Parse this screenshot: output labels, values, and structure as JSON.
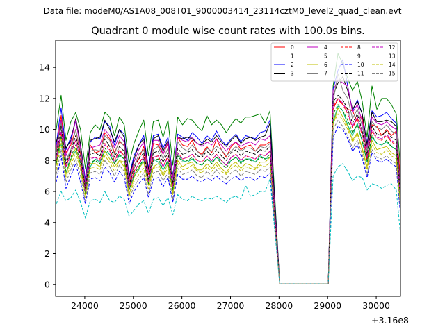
{
  "suptitle": "Data file: modeM0/AS1A08_008T01_9000003414_23114cztM0_level2_quad_clean.evt",
  "chart_data": {
    "type": "line",
    "title": "Quadrant 0 module wise count rates with 100.0s bins.",
    "xlabel": "",
    "ylabel": "",
    "x_offset_label": "+3.16e8",
    "xlim": [
      23400,
      30500
    ],
    "ylim": [
      -0.75,
      15.75
    ],
    "xticks": [
      24000,
      25000,
      26000,
      27000,
      28000,
      29000,
      30000
    ],
    "xtick_labels": [
      "24000",
      "25000",
      "26000",
      "27000",
      "28000",
      "29000",
      "30000"
    ],
    "yticks": [
      0,
      2,
      4,
      6,
      8,
      10,
      12,
      14
    ],
    "ytick_labels": [
      "0",
      "2",
      "4",
      "6",
      "8",
      "10",
      "12",
      "14"
    ],
    "grid": false,
    "legend_position": "top-right",
    "x": [
      23413,
      23513,
      23613,
      23713,
      23813,
      23913,
      24013,
      24113,
      24213,
      24313,
      24413,
      24513,
      24613,
      24713,
      24813,
      24913,
      25013,
      25113,
      25213,
      25313,
      25413,
      25513,
      25613,
      25713,
      25813,
      25913,
      26013,
      26113,
      26213,
      26313,
      26413,
      26513,
      26613,
      26713,
      26813,
      26913,
      27013,
      27113,
      27213,
      27313,
      27413,
      27513,
      27613,
      27713,
      27813,
      28013,
      28213,
      28413,
      28613,
      28813,
      29013,
      29113,
      29213,
      29313,
      29413,
      29513,
      29613,
      29713,
      29813,
      29913,
      30013,
      30113,
      30213,
      30313,
      30413,
      30513
    ],
    "series": [
      {
        "name": "0",
        "color": "#ff0000",
        "dash": "solid",
        "values": [
          8.6,
          10.9,
          8.5,
          9.0,
          10.0,
          8.4,
          6.3,
          9.0,
          8.5,
          8.6,
          9.8,
          9.4,
          8.5,
          9.2,
          9.0,
          6.6,
          7.7,
          8.1,
          8.9,
          7.1,
          9.1,
          9.0,
          8.4,
          9.1,
          6.5,
          9.5,
          9.0,
          8.9,
          9.3,
          8.6,
          8.4,
          8.9,
          8.5,
          9.4,
          8.7,
          8.2,
          8.9,
          9.2,
          8.7,
          8.9,
          9.0,
          8.6,
          9.0,
          9.0,
          9.2,
          0.05,
          0.05,
          0.05,
          0.05,
          0.05,
          0.05,
          11.3,
          12.0,
          11.6,
          11.3,
          11.2,
          10.5,
          10.9,
          8.0,
          10.3,
          10.2,
          9.6,
          10.0,
          9.6,
          9.9,
          6.5
        ]
      },
      {
        "name": "1",
        "color": "#008000",
        "dash": "solid",
        "values": [
          10.0,
          12.2,
          9.3,
          10.5,
          11.1,
          10.0,
          7.5,
          9.8,
          10.3,
          10.0,
          11.1,
          10.8,
          9.6,
          10.8,
          10.3,
          7.8,
          9.1,
          9.9,
          10.6,
          8.3,
          10.5,
          10.6,
          9.5,
          10.6,
          7.7,
          10.8,
          10.3,
          10.7,
          10.6,
          10.2,
          9.9,
          10.9,
          10.3,
          10.6,
          10.3,
          9.8,
          10.3,
          10.7,
          10.4,
          10.8,
          10.8,
          10.9,
          11.0,
          10.4,
          11.2,
          0.05,
          0.05,
          0.05,
          0.05,
          0.05,
          0.05,
          12.8,
          14.9,
          14.2,
          13.3,
          12.5,
          13.1,
          11.8,
          9.5,
          12.8,
          11.3,
          12.0,
          12.0,
          11.6,
          11.0,
          7.0
        ]
      },
      {
        "name": "2",
        "color": "#0000ff",
        "dash": "solid",
        "values": [
          9.0,
          11.4,
          8.7,
          9.5,
          10.5,
          9.0,
          6.8,
          9.2,
          9.5,
          9.4,
          10.5,
          10.2,
          9.0,
          10.0,
          9.7,
          7.0,
          8.3,
          9.0,
          9.6,
          7.5,
          9.6,
          9.7,
          8.8,
          9.5,
          7.0,
          9.7,
          9.5,
          9.3,
          9.8,
          9.5,
          9.1,
          9.6,
          9.3,
          9.9,
          9.3,
          9.0,
          9.4,
          9.7,
          9.2,
          9.6,
          9.5,
          9.4,
          9.8,
          9.9,
          10.6,
          0.05,
          0.05,
          0.05,
          0.05,
          0.05,
          0.05,
          12.6,
          13.8,
          14.5,
          12.8,
          11.2,
          11.9,
          11.0,
          9.1,
          11.2,
          10.8,
          10.9,
          11.1,
          10.7,
          10.4,
          3.6
        ]
      },
      {
        "name": "3",
        "color": "#000000",
        "dash": "solid",
        "values": [
          9.2,
          10.2,
          8.8,
          9.3,
          10.7,
          9.1,
          6.5,
          9.3,
          9.4,
          9.5,
          10.6,
          10.0,
          9.2,
          10.0,
          9.5,
          6.9,
          8.1,
          9.0,
          9.4,
          7.4,
          9.4,
          9.6,
          8.6,
          9.3,
          6.9,
          9.5,
          9.4,
          9.5,
          9.4,
          9.1,
          9.0,
          9.4,
          9.2,
          9.6,
          9.2,
          8.9,
          9.3,
          9.6,
          9.1,
          9.4,
          9.5,
          9.3,
          9.5,
          9.6,
          10.4,
          0.05,
          0.05,
          0.05,
          0.05,
          0.05,
          0.05,
          12.2,
          13.0,
          13.4,
          12.5,
          11.3,
          11.8,
          11.0,
          9.0,
          11.1,
          10.5,
          10.5,
          10.6,
          10.5,
          10.2,
          5.5
        ]
      },
      {
        "name": "4",
        "color": "#bf00bf",
        "dash": "solid",
        "values": [
          8.8,
          10.6,
          8.3,
          9.2,
          10.6,
          8.8,
          6.6,
          8.8,
          8.9,
          9.0,
          10.0,
          9.6,
          8.8,
          9.6,
          9.2,
          6.8,
          7.9,
          8.7,
          9.2,
          7.2,
          9.3,
          9.3,
          8.4,
          9.2,
          6.9,
          9.5,
          9.3,
          9.2,
          9.5,
          9.1,
          8.9,
          9.2,
          9.0,
          9.4,
          9.0,
          8.6,
          9.0,
          9.2,
          8.9,
          9.1,
          9.2,
          9.0,
          9.4,
          9.3,
          9.6,
          0.05,
          0.05,
          0.05,
          0.05,
          0.05,
          0.05,
          12.5,
          13.2,
          13.0,
          12.8,
          11.1,
          11.6,
          10.5,
          8.8,
          10.8,
          10.4,
          10.3,
          10.5,
          10.2,
          10.0,
          5.2
        ]
      },
      {
        "name": "5",
        "color": "#00bf7f",
        "dash": "solid",
        "values": [
          7.9,
          9.1,
          7.2,
          8.1,
          8.6,
          7.9,
          5.8,
          7.6,
          8.1,
          7.9,
          8.6,
          8.4,
          7.8,
          8.3,
          8.1,
          6.1,
          7.0,
          7.4,
          8.1,
          6.5,
          8.1,
          7.9,
          7.4,
          7.9,
          6.2,
          8.4,
          8.0,
          7.9,
          8.1,
          7.8,
          7.7,
          8.1,
          7.9,
          8.2,
          8.0,
          7.7,
          8.0,
          8.2,
          7.9,
          8.1,
          8.1,
          7.9,
          8.3,
          8.1,
          8.2,
          0.05,
          0.05,
          0.05,
          0.05,
          0.05,
          0.05,
          10.5,
          11.5,
          11.2,
          10.3,
          9.6,
          10.4,
          9.2,
          7.9,
          9.5,
          9.1,
          9.0,
          9.2,
          8.9,
          8.7,
          4.6
        ]
      },
      {
        "name": "6",
        "color": "#bfbf00",
        "dash": "solid",
        "values": [
          7.7,
          9.5,
          7.1,
          8.0,
          8.8,
          7.6,
          5.8,
          7.8,
          7.8,
          7.6,
          8.6,
          8.1,
          7.6,
          8.0,
          7.9,
          5.8,
          6.9,
          7.5,
          7.9,
          6.4,
          7.6,
          7.8,
          7.1,
          7.8,
          5.9,
          8.0,
          7.6,
          7.8,
          7.9,
          7.4,
          7.4,
          7.8,
          7.5,
          7.9,
          7.5,
          7.2,
          7.7,
          7.9,
          7.5,
          7.8,
          7.7,
          7.5,
          7.9,
          7.9,
          8.2,
          0.05,
          0.05,
          0.05,
          0.05,
          0.05,
          0.05,
          10.3,
          11.4,
          10.8,
          10.2,
          9.3,
          9.8,
          8.8,
          7.6,
          9.3,
          8.7,
          8.8,
          8.9,
          8.5,
          8.3,
          4.7
        ]
      },
      {
        "name": "7",
        "color": "#7f7f7f",
        "dash": "solid",
        "values": [
          8.5,
          10.4,
          8.0,
          8.7,
          10.0,
          8.6,
          6.3,
          8.6,
          8.7,
          8.6,
          9.6,
          9.3,
          8.4,
          9.3,
          8.9,
          6.5,
          7.6,
          8.4,
          8.7,
          6.8,
          8.7,
          8.9,
          8.1,
          8.8,
          6.6,
          9.2,
          8.8,
          8.6,
          9.0,
          8.6,
          8.3,
          8.8,
          8.6,
          8.9,
          8.7,
          8.3,
          8.6,
          8.9,
          8.6,
          8.8,
          8.8,
          8.6,
          8.9,
          8.8,
          9.1,
          0.05,
          0.05,
          0.05,
          0.05,
          0.05,
          0.05,
          11.8,
          13.6,
          12.5,
          12.0,
          10.7,
          11.3,
          10.2,
          8.6,
          10.5,
          10.1,
          10.0,
          10.3,
          9.9,
          9.7,
          5.1
        ]
      },
      {
        "name": "8",
        "color": "#ff0000",
        "dash": "dashed",
        "values": [
          8.0,
          9.8,
          7.6,
          8.5,
          9.3,
          8.0,
          6.1,
          8.2,
          8.2,
          8.1,
          9.1,
          8.7,
          8.0,
          8.7,
          8.3,
          6.3,
          7.3,
          7.8,
          8.3,
          6.7,
          8.2,
          8.3,
          7.6,
          8.3,
          6.3,
          8.5,
          8.1,
          8.2,
          8.4,
          8.0,
          7.9,
          8.3,
          8.0,
          8.4,
          8.0,
          7.7,
          8.2,
          8.4,
          8.0,
          8.3,
          8.2,
          8.1,
          8.4,
          8.3,
          8.6,
          0.05,
          0.05,
          0.05,
          0.05,
          0.05,
          0.05,
          11.5,
          11.9,
          11.6,
          11.0,
          10.1,
          10.7,
          9.6,
          8.1,
          9.9,
          9.4,
          9.3,
          9.6,
          9.2,
          9.0,
          5.0
        ]
      },
      {
        "name": "9",
        "color": "#008000",
        "dash": "dashed",
        "values": [
          7.8,
          9.6,
          7.3,
          8.2,
          9.0,
          7.8,
          5.9,
          7.9,
          8.0,
          7.8,
          8.8,
          8.4,
          7.8,
          8.4,
          8.1,
          6.1,
          7.1,
          7.6,
          8.1,
          6.5,
          8.0,
          8.1,
          7.4,
          8.0,
          6.1,
          8.3,
          7.9,
          8.0,
          8.2,
          7.8,
          7.7,
          8.1,
          7.8,
          8.2,
          7.8,
          7.5,
          8.0,
          8.2,
          7.8,
          8.1,
          8.0,
          7.9,
          8.2,
          8.1,
          8.4,
          0.05,
          0.05,
          0.05,
          0.05,
          0.05,
          0.05,
          11.0,
          11.6,
          11.2,
          10.6,
          9.8,
          10.3,
          9.3,
          7.9,
          9.6,
          9.1,
          9.0,
          9.3,
          8.9,
          8.7,
          4.8
        ]
      },
      {
        "name": "10",
        "color": "#0000ff",
        "dash": "dashed",
        "values": [
          6.6,
          8.3,
          6.2,
          7.0,
          7.8,
          6.6,
          5.2,
          6.8,
          6.9,
          6.7,
          7.6,
          7.2,
          6.6,
          7.3,
          6.9,
          5.2,
          6.0,
          6.5,
          6.9,
          5.6,
          6.8,
          6.9,
          6.3,
          6.9,
          5.3,
          7.1,
          6.8,
          6.8,
          7.0,
          6.7,
          6.6,
          6.9,
          6.7,
          7.0,
          6.7,
          6.5,
          6.8,
          7.0,
          6.7,
          6.9,
          6.9,
          6.7,
          7.0,
          6.9,
          7.2,
          0.05,
          0.05,
          0.05,
          0.05,
          0.05,
          0.05,
          9.5,
          10.2,
          10.0,
          9.4,
          8.6,
          9.0,
          8.1,
          6.9,
          8.5,
          8.0,
          7.9,
          8.1,
          7.8,
          7.6,
          4.0
        ]
      },
      {
        "name": "11",
        "color": "#000000",
        "dash": "dashed",
        "values": [
          8.3,
          10.2,
          7.8,
          8.6,
          9.6,
          8.3,
          6.2,
          8.4,
          8.5,
          8.3,
          9.4,
          8.9,
          8.2,
          8.9,
          8.6,
          6.4,
          7.5,
          8.1,
          8.5,
          6.8,
          8.5,
          8.6,
          7.9,
          8.5,
          6.5,
          8.8,
          8.4,
          8.5,
          8.7,
          8.3,
          8.2,
          8.6,
          8.3,
          8.7,
          8.3,
          8.0,
          8.5,
          8.7,
          8.3,
          8.6,
          8.5,
          8.4,
          8.7,
          8.6,
          8.9,
          0.05,
          0.05,
          0.05,
          0.05,
          0.05,
          0.05,
          11.8,
          12.2,
          11.9,
          11.3,
          10.4,
          11.0,
          9.9,
          8.4,
          10.2,
          9.7,
          9.6,
          9.9,
          9.5,
          9.3,
          5.2
        ]
      },
      {
        "name": "12",
        "color": "#bf00bf",
        "dash": "dashed",
        "values": [
          8.1,
          9.9,
          7.6,
          8.4,
          9.3,
          8.0,
          6.0,
          8.1,
          8.2,
          8.0,
          9.0,
          8.6,
          7.9,
          8.6,
          8.3,
          6.2,
          7.2,
          7.8,
          8.2,
          6.6,
          8.2,
          8.3,
          7.6,
          8.2,
          6.3,
          8.5,
          8.1,
          8.2,
          8.4,
          8.0,
          7.9,
          8.3,
          8.0,
          8.4,
          8.0,
          7.7,
          8.2,
          8.4,
          8.0,
          8.3,
          8.2,
          8.1,
          8.4,
          8.3,
          8.6,
          0.05,
          0.05,
          0.05,
          0.05,
          0.05,
          0.05,
          11.6,
          12.0,
          11.7,
          11.1,
          10.2,
          10.8,
          9.7,
          8.2,
          10.0,
          9.5,
          9.4,
          9.7,
          9.3,
          9.1,
          5.0
        ]
      },
      {
        "name": "13",
        "color": "#00bfbf",
        "dash": "dashed",
        "values": [
          5.2,
          6.0,
          5.4,
          5.6,
          6.1,
          5.3,
          4.3,
          5.4,
          5.5,
          5.3,
          6.0,
          5.4,
          5.3,
          5.7,
          5.5,
          4.4,
          4.8,
          5.2,
          5.4,
          4.6,
          5.5,
          5.6,
          5.1,
          5.6,
          4.5,
          5.8,
          5.5,
          5.4,
          5.7,
          5.5,
          5.4,
          5.6,
          5.5,
          5.7,
          5.5,
          5.3,
          5.6,
          5.7,
          5.5,
          6.4,
          5.7,
          5.8,
          6.0,
          6.0,
          6.8,
          0.05,
          0.05,
          0.05,
          0.05,
          0.05,
          0.05,
          7.0,
          7.6,
          7.8,
          7.3,
          6.7,
          7.0,
          6.9,
          6.1,
          6.5,
          6.4,
          6.2,
          6.4,
          6.5,
          6.1,
          2.8
        ]
      },
      {
        "name": "14",
        "color": "#bfbf00",
        "dash": "dashed",
        "values": [
          7.4,
          9.1,
          6.9,
          7.7,
          8.5,
          7.4,
          5.6,
          7.5,
          7.6,
          7.4,
          8.3,
          7.9,
          7.3,
          8.0,
          7.6,
          5.7,
          6.6,
          7.1,
          7.5,
          6.1,
          7.5,
          7.6,
          7.0,
          7.5,
          5.8,
          7.8,
          7.4,
          7.5,
          7.7,
          7.3,
          7.2,
          7.6,
          7.3,
          7.7,
          7.3,
          7.1,
          7.5,
          7.7,
          7.3,
          7.6,
          7.5,
          7.4,
          7.7,
          7.6,
          7.9,
          0.05,
          0.05,
          0.05,
          0.05,
          0.05,
          0.05,
          10.4,
          11.0,
          10.6,
          10.0,
          9.2,
          9.7,
          8.7,
          7.4,
          9.0,
          8.5,
          8.4,
          8.7,
          8.3,
          8.1,
          4.5
        ]
      },
      {
        "name": "15",
        "color": "#7f7f7f",
        "dash": "dashed",
        "values": [
          7.1,
          8.7,
          6.6,
          7.4,
          8.1,
          7.0,
          5.4,
          7.2,
          7.3,
          7.1,
          8.0,
          7.6,
          7.0,
          7.7,
          7.3,
          5.5,
          6.3,
          6.8,
          7.2,
          5.8,
          7.2,
          7.3,
          6.7,
          7.2,
          5.5,
          7.5,
          7.1,
          7.2,
          7.4,
          7.0,
          6.9,
          7.3,
          7.0,
          7.4,
          7.0,
          6.8,
          7.2,
          7.4,
          7.0,
          7.3,
          7.2,
          7.1,
          7.4,
          7.3,
          7.6,
          0.05,
          0.05,
          0.05,
          0.05,
          0.05,
          0.05,
          10.0,
          10.6,
          10.2,
          9.6,
          8.8,
          9.3,
          8.4,
          7.1,
          8.7,
          8.2,
          8.1,
          8.3,
          8.0,
          7.8,
          4.3
        ]
      }
    ]
  }
}
